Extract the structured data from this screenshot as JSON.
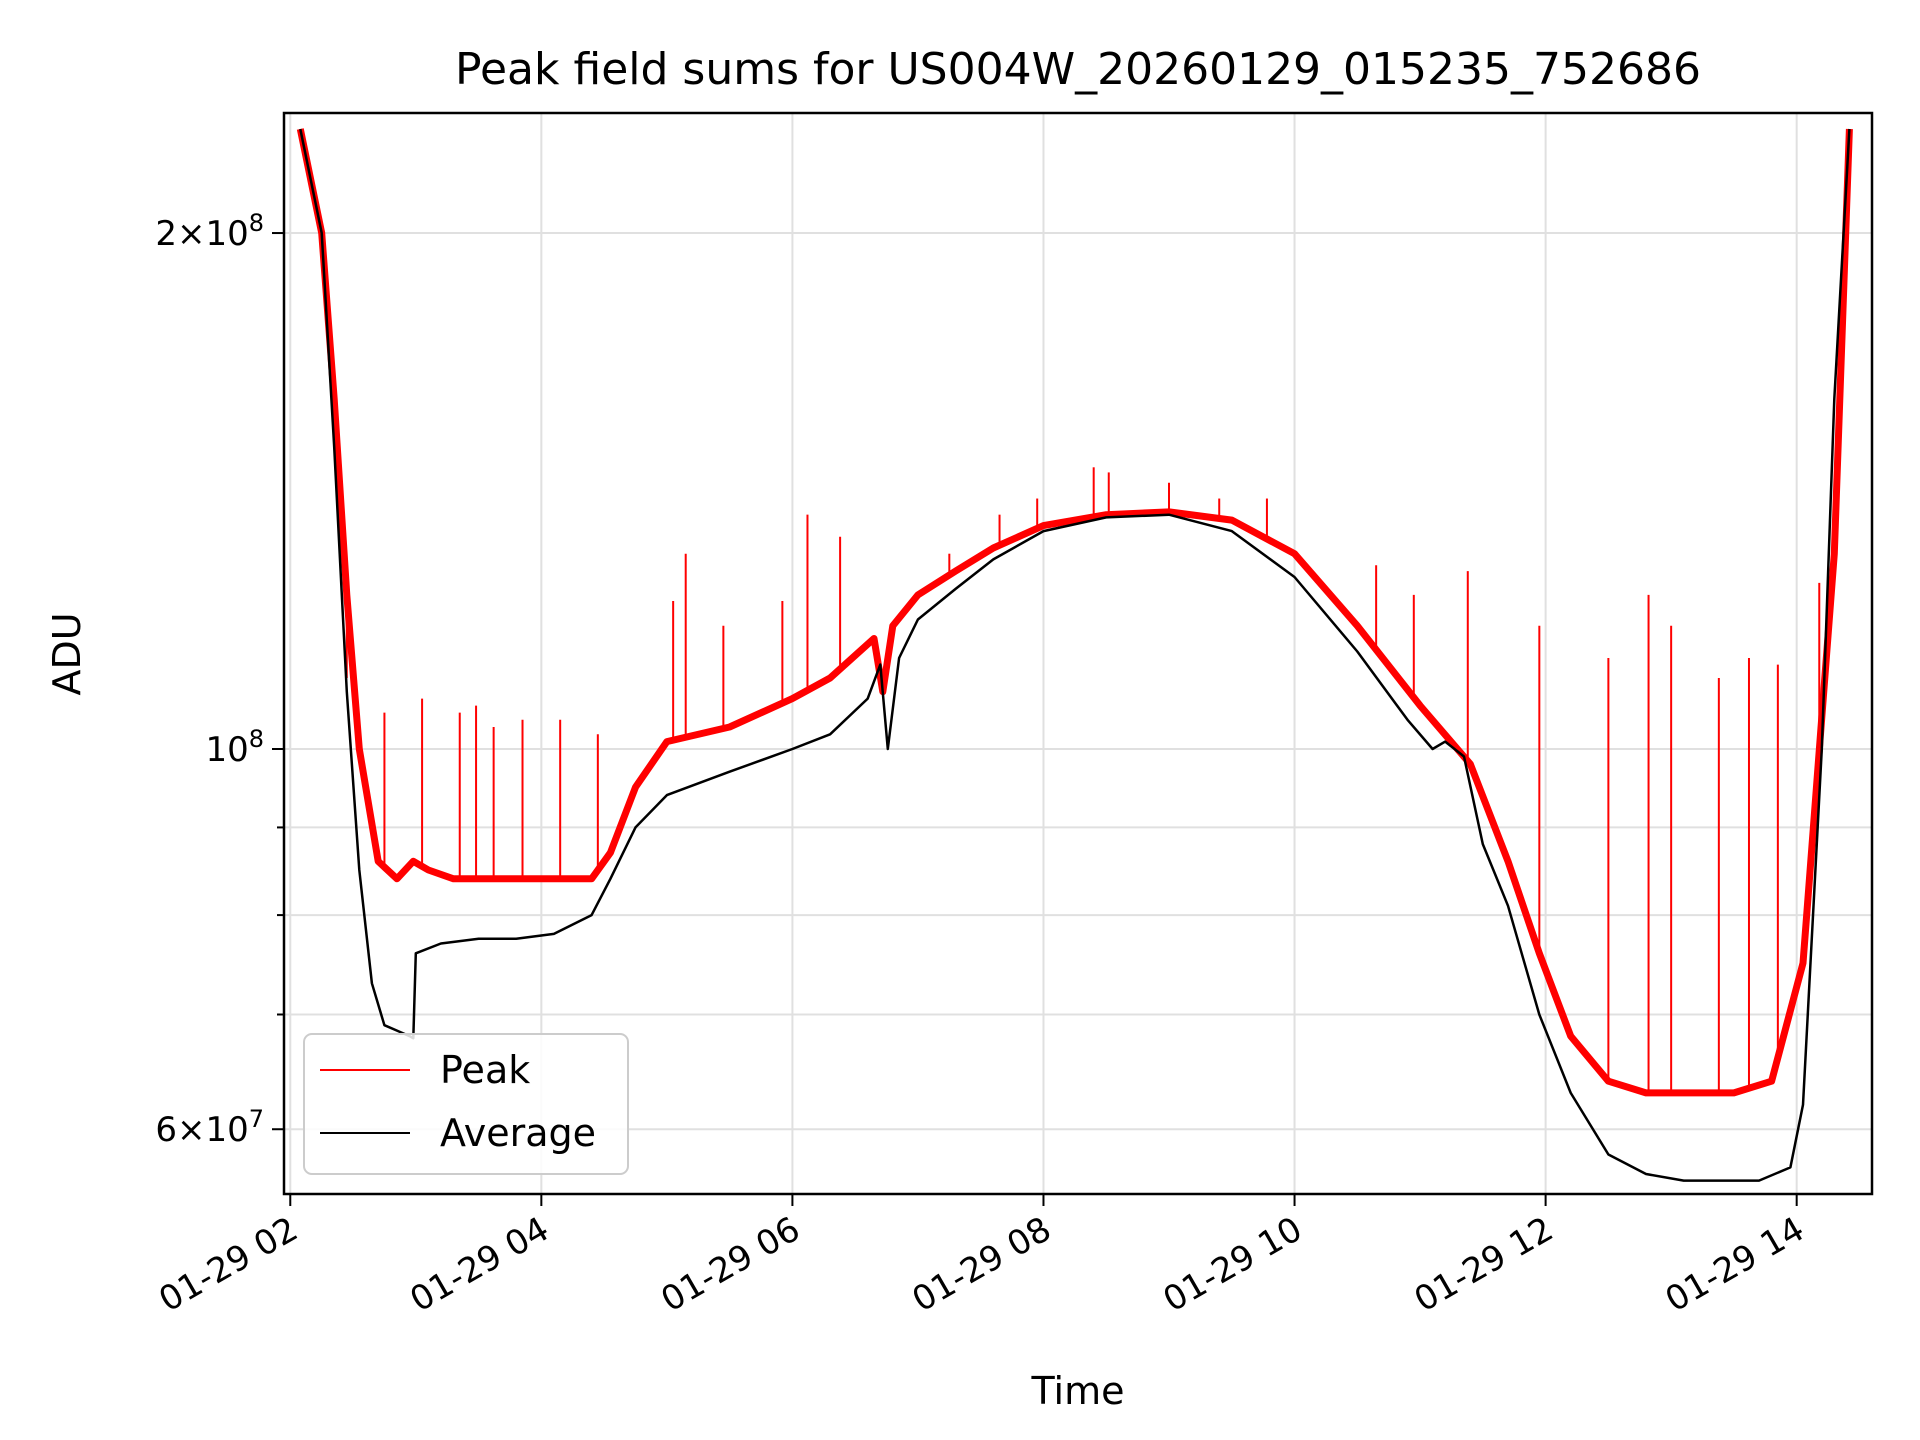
{
  "chart_data": {
    "type": "line",
    "title": "Peak field sums for US004W_20260129_015235_752686",
    "xlabel": "Time",
    "ylabel": "ADU",
    "yscale": "log",
    "xlim": [
      1.95,
      14.6
    ],
    "ylim": [
      55000000,
      235000000
    ],
    "x_ticks": [
      {
        "value": 2,
        "label": "01-29 02"
      },
      {
        "value": 4,
        "label": "01-29 04"
      },
      {
        "value": 6,
        "label": "01-29 06"
      },
      {
        "value": 8,
        "label": "01-29 08"
      },
      {
        "value": 10,
        "label": "01-29 10"
      },
      {
        "value": 12,
        "label": "01-29 12"
      },
      {
        "value": 14,
        "label": "01-29 14"
      }
    ],
    "y_major_ticks": [
      {
        "value": 60000000,
        "mantissa": "6",
        "exponent": "7"
      },
      {
        "value": 100000000,
        "mantissa": "",
        "exponent": "8"
      },
      {
        "value": 200000000,
        "mantissa": "2",
        "exponent": "8"
      }
    ],
    "y_minor_ticks": [
      70000000,
      80000000,
      90000000
    ],
    "grid": true,
    "legend_position": "lower-left",
    "series": [
      {
        "name": "Peak",
        "color": "#ff0000",
        "x": [
          2.08,
          2.25,
          2.35,
          2.45,
          2.55,
          2.7,
          2.85,
          2.98,
          3.1,
          3.3,
          3.6,
          3.9,
          4.2,
          4.4,
          4.55,
          4.75,
          5.0,
          5.5,
          6.0,
          6.3,
          6.65,
          6.72,
          6.8,
          7.0,
          7.3,
          7.6,
          8.0,
          8.5,
          9.0,
          9.5,
          10.0,
          10.5,
          11.0,
          11.4,
          11.7,
          11.95,
          12.2,
          12.5,
          12.8,
          13.1,
          13.5,
          13.8,
          14.05,
          14.3,
          14.42
        ],
        "values": [
          230000000,
          200000000,
          160000000,
          123000000,
          100000000,
          86000000,
          84000000,
          86000000,
          85000000,
          84000000,
          84000000,
          84000000,
          84000000,
          84000000,
          87000000,
          95000000,
          101000000,
          103000000,
          107000000,
          110000000,
          116000000,
          108000000,
          118000000,
          123000000,
          127000000,
          131000000,
          135000000,
          137000000,
          137500000,
          136000000,
          130000000,
          118000000,
          106000000,
          98000000,
          86000000,
          76000000,
          68000000,
          64000000,
          63000000,
          63000000,
          63000000,
          64000000,
          75000000,
          130000000,
          230000000
        ],
        "spikes": [
          {
            "x": 2.45,
            "value": 110000000
          },
          {
            "x": 2.75,
            "value": 105000000
          },
          {
            "x": 3.05,
            "value": 107000000
          },
          {
            "x": 3.35,
            "value": 105000000
          },
          {
            "x": 3.48,
            "value": 106000000
          },
          {
            "x": 3.62,
            "value": 103000000
          },
          {
            "x": 3.85,
            "value": 104000000
          },
          {
            "x": 4.15,
            "value": 104000000
          },
          {
            "x": 4.45,
            "value": 102000000
          },
          {
            "x": 5.05,
            "value": 122000000
          },
          {
            "x": 5.15,
            "value": 130000000
          },
          {
            "x": 5.45,
            "value": 118000000
          },
          {
            "x": 5.92,
            "value": 122000000
          },
          {
            "x": 6.12,
            "value": 137000000
          },
          {
            "x": 6.38,
            "value": 133000000
          },
          {
            "x": 7.25,
            "value": 130000000
          },
          {
            "x": 7.65,
            "value": 137000000
          },
          {
            "x": 7.95,
            "value": 140000000
          },
          {
            "x": 8.4,
            "value": 146000000
          },
          {
            "x": 8.52,
            "value": 145000000
          },
          {
            "x": 9.0,
            "value": 143000000
          },
          {
            "x": 9.4,
            "value": 140000000
          },
          {
            "x": 9.78,
            "value": 140000000
          },
          {
            "x": 10.65,
            "value": 128000000
          },
          {
            "x": 10.95,
            "value": 123000000
          },
          {
            "x": 11.38,
            "value": 127000000
          },
          {
            "x": 11.95,
            "value": 118000000
          },
          {
            "x": 12.5,
            "value": 113000000
          },
          {
            "x": 12.82,
            "value": 123000000
          },
          {
            "x": 13.0,
            "value": 118000000
          },
          {
            "x": 13.38,
            "value": 110000000
          },
          {
            "x": 13.62,
            "value": 113000000
          },
          {
            "x": 13.85,
            "value": 112000000
          },
          {
            "x": 14.18,
            "value": 125000000
          }
        ]
      },
      {
        "name": "Average",
        "color": "#000000",
        "x": [
          2.08,
          2.25,
          2.35,
          2.45,
          2.55,
          2.65,
          2.75,
          2.85,
          2.95,
          2.98,
          3.0,
          3.2,
          3.5,
          3.8,
          4.1,
          4.4,
          4.55,
          4.75,
          5.0,
          5.5,
          6.0,
          6.3,
          6.6,
          6.7,
          6.76,
          6.85,
          7.0,
          7.3,
          7.6,
          8.0,
          8.5,
          9.0,
          9.5,
          10.0,
          10.5,
          10.9,
          11.1,
          11.2,
          11.35,
          11.5,
          11.7,
          11.95,
          12.2,
          12.5,
          12.8,
          13.1,
          13.4,
          13.7,
          13.95,
          14.05,
          14.2,
          14.3,
          14.42
        ],
        "values": [
          230000000,
          200000000,
          150000000,
          108000000,
          85000000,
          73000000,
          69000000,
          68500000,
          68000000,
          67800000,
          76000000,
          77000000,
          77500000,
          77500000,
          78000000,
          80000000,
          84000000,
          90000000,
          94000000,
          97000000,
          100000000,
          102000000,
          107000000,
          112000000,
          100000000,
          113000000,
          119000000,
          124000000,
          129000000,
          134000000,
          136500000,
          137000000,
          134000000,
          126000000,
          114000000,
          104000000,
          100000000,
          101000000,
          99000000,
          88000000,
          81000000,
          70000000,
          63000000,
          58000000,
          56500000,
          56000000,
          56000000,
          56000000,
          57000000,
          62000000,
          100000000,
          160000000,
          230000000
        ]
      }
    ]
  }
}
